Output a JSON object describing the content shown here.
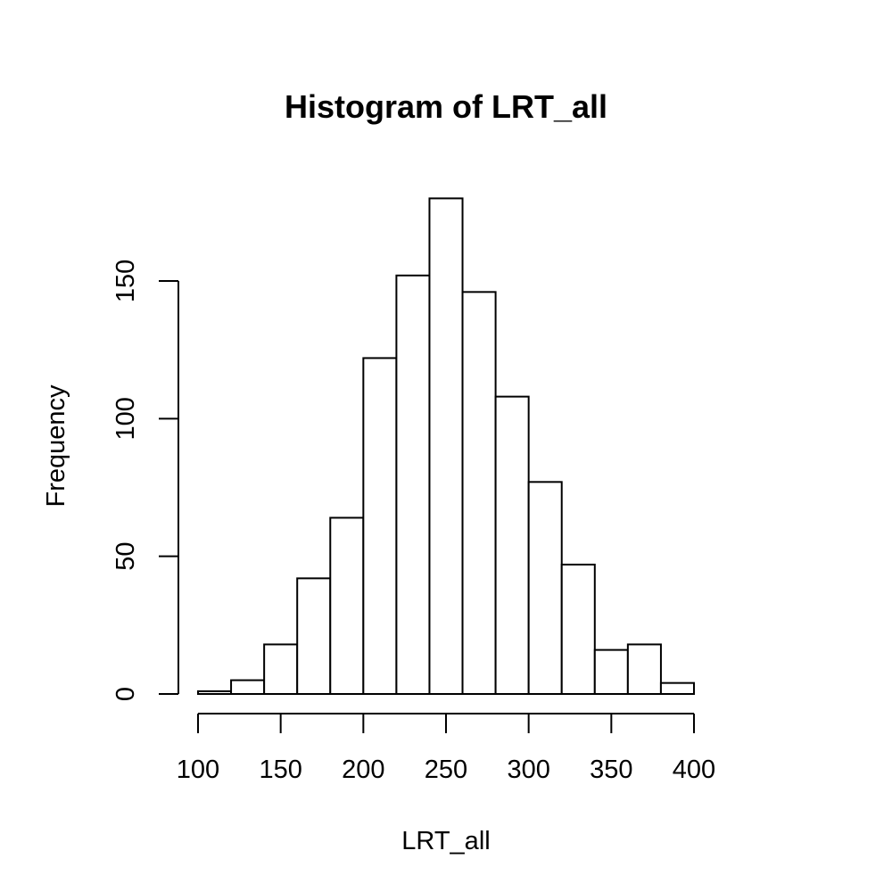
{
  "chart_data": {
    "type": "bar",
    "title": "Histogram of LRT_all",
    "xlabel": "LRT_all",
    "ylabel": "Frequency",
    "bin_edges": [
      100,
      120,
      140,
      160,
      180,
      200,
      220,
      240,
      260,
      280,
      300,
      320,
      340,
      360,
      380,
      400
    ],
    "values": [
      1,
      5,
      18,
      42,
      64,
      122,
      152,
      180,
      146,
      108,
      77,
      47,
      16,
      18,
      4
    ],
    "x_ticks": [
      100,
      150,
      200,
      250,
      300,
      350,
      400
    ],
    "y_ticks": [
      0,
      50,
      100,
      150
    ],
    "xlim": [
      100,
      400
    ],
    "ylim": [
      0,
      150
    ],
    "grid": false,
    "colors": {
      "bar_fill": "#ffffff",
      "bar_stroke": "#000000"
    }
  }
}
